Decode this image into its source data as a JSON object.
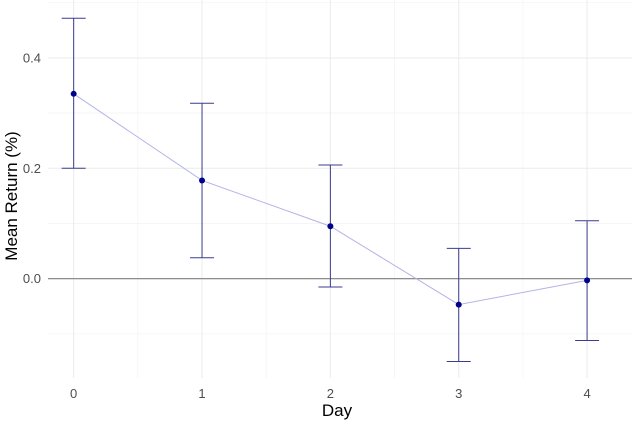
{
  "chart_data": {
    "type": "line",
    "title": "",
    "xlabel": "Day",
    "ylabel": "Mean Return (%)",
    "x": [
      0,
      1,
      2,
      3,
      4
    ],
    "x_ticks": [
      "0",
      "1",
      "2",
      "3",
      "4"
    ],
    "xlim": [
      -0.2,
      4.35
    ],
    "y_ticks": [
      0.0,
      0.2,
      0.4
    ],
    "y_tick_labels": [
      "0.0",
      "0.2",
      "0.4"
    ],
    "ylim": [
      -0.18,
      0.505
    ],
    "grid": true,
    "reference_line": {
      "y": 0,
      "color": "#808080"
    },
    "series": [
      {
        "values": [
          0.335,
          0.178,
          0.095,
          -0.047,
          -0.003
        ],
        "error_low": [
          0.2,
          0.038,
          -0.015,
          -0.15,
          -0.112
        ],
        "error_high": [
          0.472,
          0.318,
          0.206,
          0.055,
          0.105
        ],
        "point_color": "#00008b",
        "line_color": "#b3b3e6",
        "errorbar_color": "#3b3b8f"
      }
    ]
  }
}
